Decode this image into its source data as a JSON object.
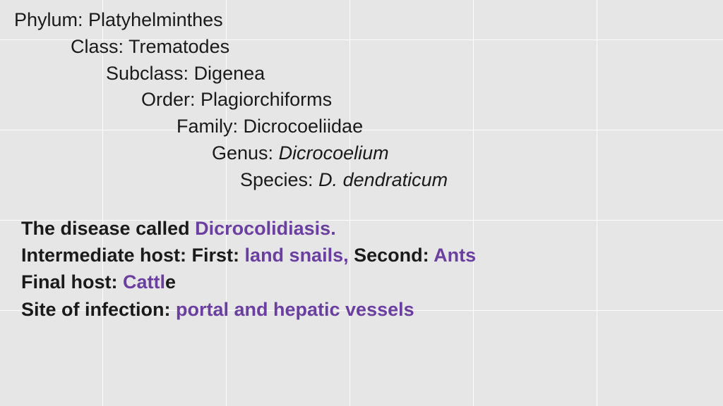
{
  "colors": {
    "background": "#e6e6e6",
    "gridline": "#ffffff",
    "text": "#1a1a1a",
    "accent": "#6b3fa0"
  },
  "typography": {
    "taxonomy_fontsize": 27,
    "info_fontsize": 27,
    "taxonomy_weight": 400,
    "info_weight": 700
  },
  "grid": {
    "cols": 5,
    "rows": 4,
    "col_spacing": 175,
    "col_start": 145,
    "row_spacing": 128,
    "row_start": 56
  },
  "taxonomy": [
    {
      "label": "Phylum:",
      "value": "Platyhelminthes",
      "indent": 0,
      "italic": false
    },
    {
      "label": "Class:",
      "value": "Trematodes",
      "indent": 80,
      "italic": false
    },
    {
      "label": "Subclass:",
      "value": "Digenea",
      "indent": 130,
      "italic": false
    },
    {
      "label": "Order:",
      "value": "Plagiorchiforms",
      "indent": 180,
      "italic": false
    },
    {
      "label": "Family:",
      "value": "Dicrocoeliidae",
      "indent": 230,
      "italic": false
    },
    {
      "label": "Genus:",
      "value": "Dicrocoelium",
      "indent": 280,
      "italic": true
    },
    {
      "label": "Species:",
      "value": "D. dendraticum",
      "indent": 320,
      "italic": true
    }
  ],
  "info": {
    "line1_prefix": "The disease called ",
    "line1_accent": "Dicrocolidiasis.",
    "line2_p1": "Intermediate host: First: ",
    "line2_a1": "land snails,",
    "line2_p2": " Second: ",
    "line2_a2": "Ants",
    "line3_p1": "Final host: ",
    "line3_a1": "Cattl",
    "line3_p2": "e",
    "line4_p1": "Site of infection: ",
    "line4_a1": "portal and hepatic vessels"
  }
}
